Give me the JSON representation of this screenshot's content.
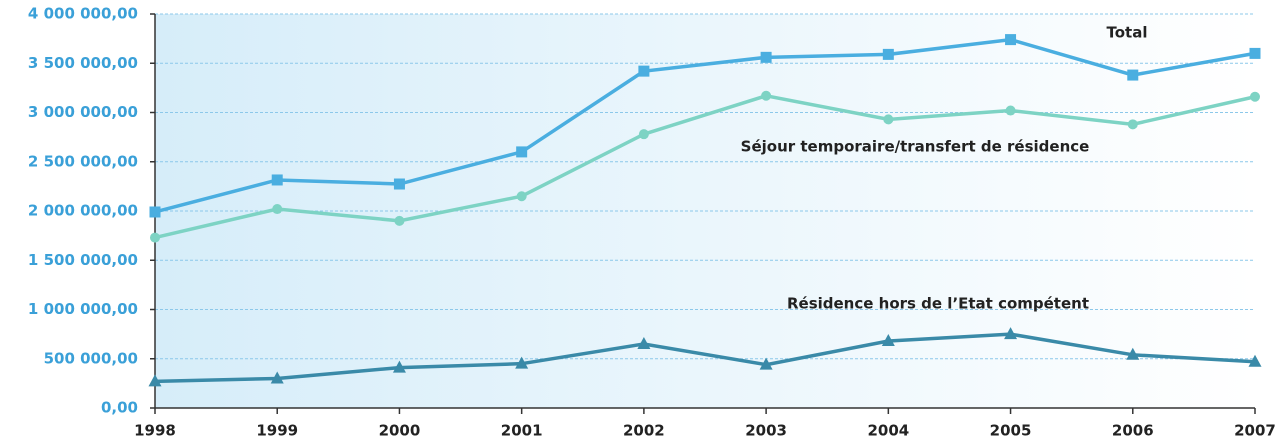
{
  "chart_data": {
    "type": "line",
    "categories": [
      "1998",
      "1999",
      "2000",
      "2001",
      "2002",
      "2003",
      "2004",
      "2005",
      "2006",
      "2007"
    ],
    "series": [
      {
        "name": "Total",
        "color": "#4aaee0",
        "marker": "square",
        "values": [
          1990000,
          2315000,
          2274000,
          2600000,
          3420000,
          3560000,
          3590000,
          3740000,
          3380000,
          3600000
        ]
      },
      {
        "name": "Séjour temporaire/transfert de résidence",
        "color": "#7dd3c4",
        "marker": "circle",
        "values": [
          1730000,
          2020000,
          1900000,
          2150000,
          2780000,
          3170000,
          2930000,
          3020000,
          2880000,
          3160000
        ]
      },
      {
        "name": "Résidence hors de l’Etat compétent",
        "color": "#3a8aa8",
        "marker": "triangle",
        "values": [
          270000,
          300000,
          410000,
          450000,
          650000,
          440000,
          680000,
          750000,
          540000,
          470000
        ]
      }
    ],
    "ylim": [
      0,
      4000000
    ],
    "yticks": [
      {
        "value": 0,
        "label": "0,00"
      },
      {
        "value": 500000,
        "label": "500 000,00"
      },
      {
        "value": 1000000,
        "label": "1 000 000,00"
      },
      {
        "value": 1500000,
        "label": "1 500 000,00"
      },
      {
        "value": 2000000,
        "label": "2 000 000,00"
      },
      {
        "value": 2500000,
        "label": "2 500 000,00"
      },
      {
        "value": 3000000,
        "label": "3 000 000,00"
      },
      {
        "value": 3500000,
        "label": "3 500 000,00"
      },
      {
        "value": 4000000,
        "label": "4 000 000,00"
      }
    ],
    "grid": true
  }
}
